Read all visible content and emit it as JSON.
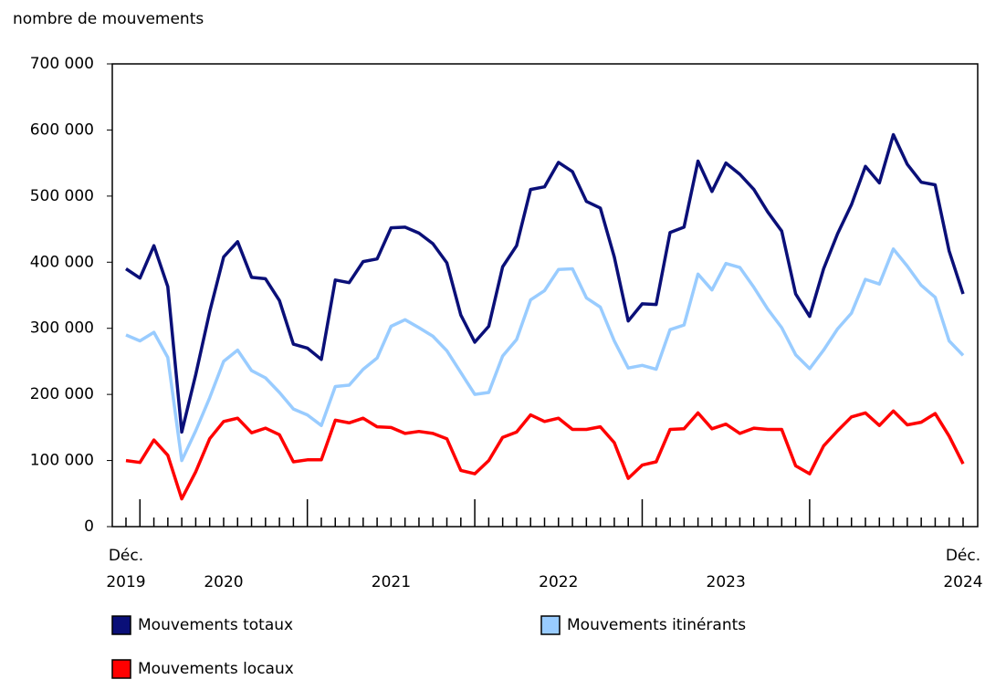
{
  "chart_data": {
    "type": "line",
    "y_label": "nombre de mouvements",
    "categories": [
      "Déc.",
      null,
      null,
      null,
      null,
      null,
      null,
      null,
      null,
      null,
      null,
      null,
      null,
      null,
      null,
      null,
      null,
      null,
      null,
      null,
      null,
      null,
      null,
      null,
      null,
      null,
      null,
      null,
      null,
      null,
      null,
      null,
      null,
      null,
      null,
      null,
      null,
      null,
      null,
      null,
      null,
      null,
      null,
      null,
      null,
      null,
      null,
      null,
      null,
      null,
      null,
      null,
      null,
      null,
      null,
      null,
      null,
      null,
      null,
      null,
      "Déc."
    ],
    "years": [
      "2019",
      "2020",
      "2021",
      "2022",
      "2023",
      "2024"
    ],
    "ylim": [
      0,
      700000
    ],
    "yticks": [
      {
        "value": 0,
        "label": "0"
      },
      {
        "value": 100000,
        "label": "100 000"
      },
      {
        "value": 200000,
        "label": "200 000"
      },
      {
        "value": 300000,
        "label": "300 000"
      },
      {
        "value": 400000,
        "label": "400 000"
      },
      {
        "value": 500000,
        "label": "500 000"
      },
      {
        "value": 600000,
        "label": "600 000"
      },
      {
        "value": 700000,
        "label": "700 000"
      }
    ],
    "series": [
      {
        "name": "Mouvements totaux",
        "color": "#0a0f78",
        "values": [
          390000,
          376000,
          425000,
          363000,
          143000,
          230000,
          325000,
          408000,
          431000,
          377000,
          375000,
          342000,
          276000,
          270000,
          253000,
          373000,
          369000,
          401000,
          405000,
          452000,
          453000,
          444000,
          428000,
          399000,
          320000,
          279000,
          303000,
          393000,
          425000,
          510000,
          514000,
          551000,
          537000,
          492000,
          482000,
          408000,
          311000,
          337000,
          336000,
          445000,
          453000,
          553000,
          507000,
          550000,
          533000,
          510000,
          476000,
          447000,
          352000,
          318000,
          390000,
          443000,
          487000,
          545000,
          520000,
          593000,
          548000,
          521000,
          517000,
          417000,
          352000
        ]
      },
      {
        "name": "Mouvements itinérants",
        "color": "#99ccff",
        "values": [
          290000,
          281000,
          294000,
          256000,
          100000,
          145000,
          195000,
          250000,
          267000,
          236000,
          225000,
          203000,
          178000,
          169000,
          153000,
          212000,
          214000,
          238000,
          255000,
          303000,
          313000,
          301000,
          288000,
          266000,
          233000,
          200000,
          203000,
          258000,
          283000,
          343000,
          357000,
          389000,
          390000,
          346000,
          332000,
          281000,
          240000,
          244000,
          238000,
          298000,
          305000,
          382000,
          358000,
          398000,
          392000,
          362000,
          329000,
          301000,
          260000,
          239000,
          267000,
          299000,
          323000,
          374000,
          367000,
          420000,
          394000,
          365000,
          347000,
          281000,
          259000
        ]
      },
      {
        "name": "Mouvements locaux",
        "color": "#ff0000",
        "values": [
          100000,
          97000,
          131000,
          108000,
          42000,
          83000,
          133000,
          159000,
          164000,
          142000,
          149000,
          139000,
          98000,
          101000,
          101000,
          161000,
          157000,
          164000,
          151000,
          150000,
          141000,
          144000,
          141000,
          133000,
          85000,
          80000,
          100000,
          135000,
          143000,
          169000,
          159000,
          164000,
          147000,
          147000,
          151000,
          127000,
          73000,
          93000,
          98000,
          147000,
          148000,
          172000,
          148000,
          155000,
          141000,
          149000,
          147000,
          147000,
          92000,
          80000,
          122000,
          145000,
          166000,
          172000,
          153000,
          175000,
          154000,
          158000,
          171000,
          137000,
          95000
        ]
      }
    ]
  }
}
